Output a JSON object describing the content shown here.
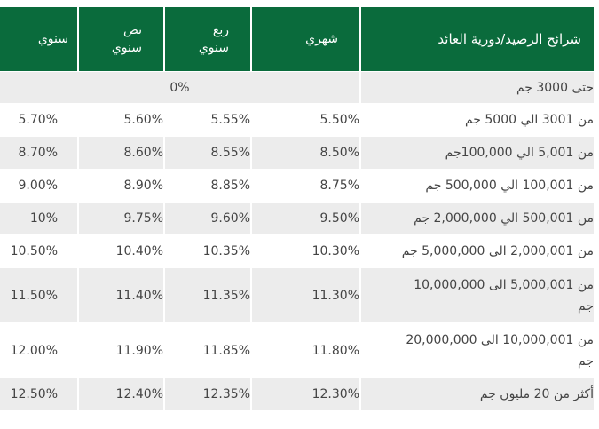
{
  "table": {
    "headers": {
      "range": "شرائح الرصيد/دورية العائد",
      "monthly": "شهري",
      "quarterly_line1": "ربع",
      "quarterly_line2": "سنوي",
      "semiannual_line1": "نص",
      "semiannual_line2": "سنوي",
      "annual": "سنوي"
    },
    "first_row": {
      "range": "حتى 3000 جم",
      "rate": "0%"
    },
    "rows": [
      {
        "range": "من 3001 الي 5000 جم",
        "monthly": "5.50%",
        "quarterly": "5.55%",
        "semiannual": "5.60%",
        "annual": "5.70%"
      },
      {
        "range": "من 5,001 الي 100,000جم",
        "monthly": "8.50%",
        "quarterly": "8.55%",
        "semiannual": "8.60%",
        "annual": "8.70%"
      },
      {
        "range": "من 100,001 الي 500,000 جم",
        "monthly": "8.75%",
        "quarterly": "8.85%",
        "semiannual": "8.90%",
        "annual": "9.00%"
      },
      {
        "range": "من 500,001 الي 2,000,000 جم",
        "monthly": "9.50%",
        "quarterly": "9.60%",
        "semiannual": "9.75%",
        "annual": "10%"
      },
      {
        "range": "من 2,000,001 الى 5,000,000 جم",
        "monthly": "10.30%",
        "quarterly": "10.35%",
        "semiannual": "10.40%",
        "annual": "10.50%"
      },
      {
        "range_line1": "من 5,000,001 الى 10,000,000",
        "range_line2": "جم",
        "monthly": "11.30%",
        "quarterly": "11.35%",
        "semiannual": "11.40%",
        "annual": "11.50%"
      },
      {
        "range_line1": "من 10,000,001 الى 20,000,000",
        "range_line2": "جم",
        "monthly": "11.80%",
        "quarterly": "11.85%",
        "semiannual": "11.90%",
        "annual": "12.00%"
      },
      {
        "range": "أكثر من 20 مليون جم",
        "monthly": "12.30%",
        "quarterly": "12.35%",
        "semiannual": "12.40%",
        "annual": "12.50%"
      }
    ]
  }
}
